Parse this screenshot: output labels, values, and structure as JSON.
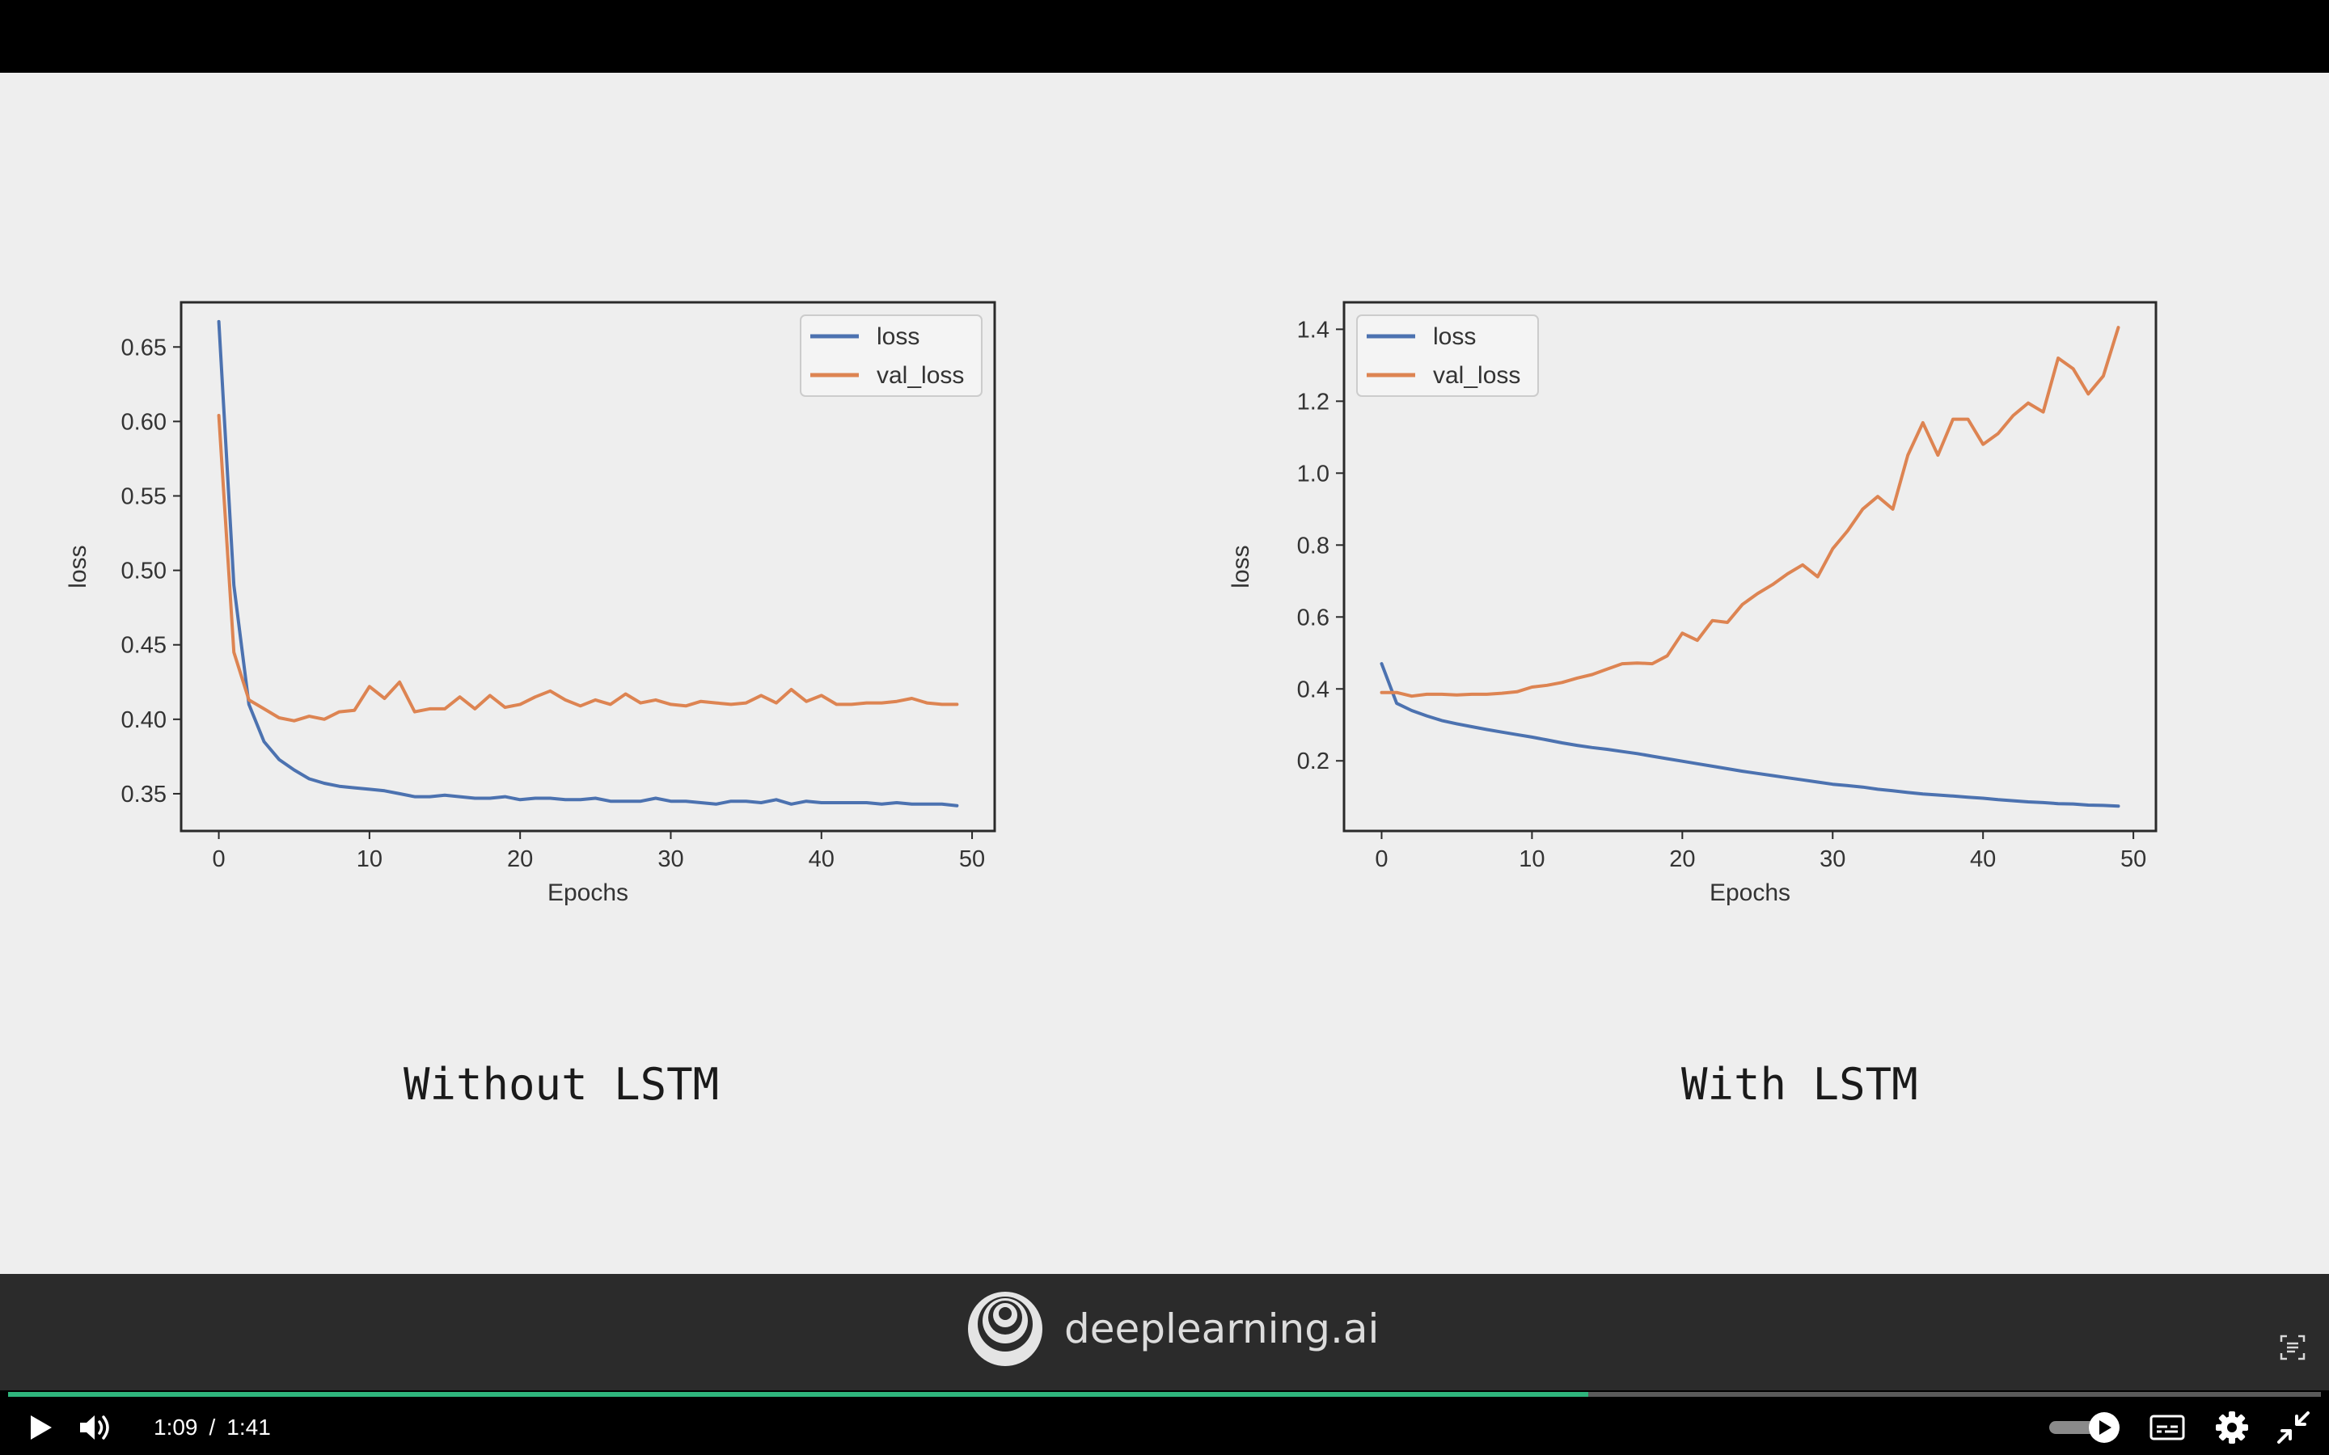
{
  "slide": {
    "captions": {
      "left": "Without LSTM",
      "right": "With LSTM"
    }
  },
  "chart_data": [
    {
      "type": "line",
      "caption": "Without LSTM",
      "xlabel": "Epochs",
      "ylabel": "loss",
      "xlim": [
        -2.5,
        51.5
      ],
      "ylim": [
        0.325,
        0.68
      ],
      "xticks": [
        0,
        10,
        20,
        30,
        40,
        50
      ],
      "yticks": [
        0.35,
        0.4,
        0.45,
        0.5,
        0.55,
        0.6,
        0.65
      ],
      "ytick_labels": [
        "0.35",
        "0.40",
        "0.45",
        "0.50",
        "0.55",
        "0.60",
        "0.65"
      ],
      "legend": "top-right",
      "grid": false,
      "x": [
        0,
        1,
        2,
        3,
        4,
        5,
        6,
        7,
        8,
        9,
        10,
        11,
        12,
        13,
        14,
        15,
        16,
        17,
        18,
        19,
        20,
        21,
        22,
        23,
        24,
        25,
        26,
        27,
        28,
        29,
        30,
        31,
        32,
        33,
        34,
        35,
        36,
        37,
        38,
        39,
        40,
        41,
        42,
        43,
        44,
        45,
        46,
        47,
        48,
        49
      ],
      "series": [
        {
          "name": "loss",
          "color": "#4c72b0",
          "values": [
            0.667,
            0.49,
            0.41,
            0.385,
            0.373,
            0.366,
            0.36,
            0.357,
            0.355,
            0.354,
            0.353,
            0.352,
            0.35,
            0.348,
            0.348,
            0.349,
            0.348,
            0.347,
            0.347,
            0.348,
            0.346,
            0.347,
            0.347,
            0.346,
            0.346,
            0.347,
            0.345,
            0.345,
            0.345,
            0.347,
            0.345,
            0.345,
            0.344,
            0.343,
            0.345,
            0.345,
            0.344,
            0.346,
            0.343,
            0.345,
            0.344,
            0.344,
            0.344,
            0.344,
            0.343,
            0.344,
            0.343,
            0.343,
            0.343,
            0.342
          ]
        },
        {
          "name": "val_loss",
          "color": "#dd8452",
          "values": [
            0.604,
            0.445,
            0.413,
            0.407,
            0.401,
            0.399,
            0.402,
            0.4,
            0.405,
            0.406,
            0.422,
            0.414,
            0.425,
            0.405,
            0.407,
            0.407,
            0.415,
            0.407,
            0.416,
            0.408,
            0.41,
            0.415,
            0.419,
            0.413,
            0.409,
            0.413,
            0.41,
            0.417,
            0.411,
            0.413,
            0.41,
            0.409,
            0.412,
            0.411,
            0.41,
            0.411,
            0.416,
            0.411,
            0.42,
            0.412,
            0.416,
            0.41,
            0.41,
            0.411,
            0.411,
            0.412,
            0.414,
            0.411,
            0.41,
            0.41
          ]
        }
      ]
    },
    {
      "type": "line",
      "caption": "With LSTM",
      "xlabel": "Epochs",
      "ylabel": "loss",
      "xlim": [
        -2.5,
        51.5
      ],
      "ylim": [
        0.005,
        1.475
      ],
      "xticks": [
        0,
        10,
        20,
        30,
        40,
        50
      ],
      "yticks": [
        0.2,
        0.4,
        0.6,
        0.8,
        1.0,
        1.2,
        1.4
      ],
      "ytick_labels": [
        "0.2",
        "0.4",
        "0.6",
        "0.8",
        "1.0",
        "1.2",
        "1.4"
      ],
      "legend": "top-left",
      "grid": false,
      "x": [
        0,
        1,
        2,
        3,
        4,
        5,
        6,
        7,
        8,
        9,
        10,
        11,
        12,
        13,
        14,
        15,
        16,
        17,
        18,
        19,
        20,
        21,
        22,
        23,
        24,
        25,
        26,
        27,
        28,
        29,
        30,
        31,
        32,
        33,
        34,
        35,
        36,
        37,
        38,
        39,
        40,
        41,
        42,
        43,
        44,
        45,
        46,
        47,
        48,
        49
      ],
      "series": [
        {
          "name": "loss",
          "color": "#4c72b0",
          "values": [
            0.47,
            0.36,
            0.34,
            0.325,
            0.312,
            0.303,
            0.295,
            0.287,
            0.28,
            0.273,
            0.266,
            0.258,
            0.25,
            0.243,
            0.237,
            0.232,
            0.226,
            0.22,
            0.213,
            0.206,
            0.199,
            0.192,
            0.185,
            0.178,
            0.171,
            0.165,
            0.159,
            0.153,
            0.147,
            0.141,
            0.135,
            0.131,
            0.127,
            0.121,
            0.117,
            0.112,
            0.108,
            0.105,
            0.102,
            0.099,
            0.096,
            0.092,
            0.089,
            0.086,
            0.084,
            0.081,
            0.08,
            0.077,
            0.076,
            0.074
          ]
        },
        {
          "name": "val_loss",
          "color": "#dd8452",
          "values": [
            0.39,
            0.39,
            0.38,
            0.385,
            0.385,
            0.383,
            0.385,
            0.385,
            0.388,
            0.392,
            0.405,
            0.41,
            0.418,
            0.43,
            0.44,
            0.455,
            0.47,
            0.472,
            0.47,
            0.492,
            0.555,
            0.535,
            0.59,
            0.585,
            0.635,
            0.665,
            0.69,
            0.72,
            0.745,
            0.712,
            0.79,
            0.84,
            0.9,
            0.935,
            0.9,
            1.05,
            1.14,
            1.05,
            1.15,
            1.15,
            1.08,
            1.11,
            1.16,
            1.195,
            1.17,
            1.32,
            1.29,
            1.22,
            1.27,
            1.405
          ]
        }
      ]
    }
  ],
  "player": {
    "current_time": "1:09",
    "separator": "/",
    "duration": "1:41",
    "progress": 0.6832,
    "colors": {
      "progress": "#2fb57d",
      "track": "#5a5a5a",
      "bar": "#000000",
      "brand_bar": "#2b2b2b"
    },
    "icons": [
      "play-icon",
      "volume-icon",
      "autoplay-toggle-icon",
      "captions-icon",
      "settings-gear-icon",
      "exit-fullscreen-icon",
      "screenshot-icon"
    ]
  },
  "brand": {
    "name": "deeplearning.ai"
  }
}
